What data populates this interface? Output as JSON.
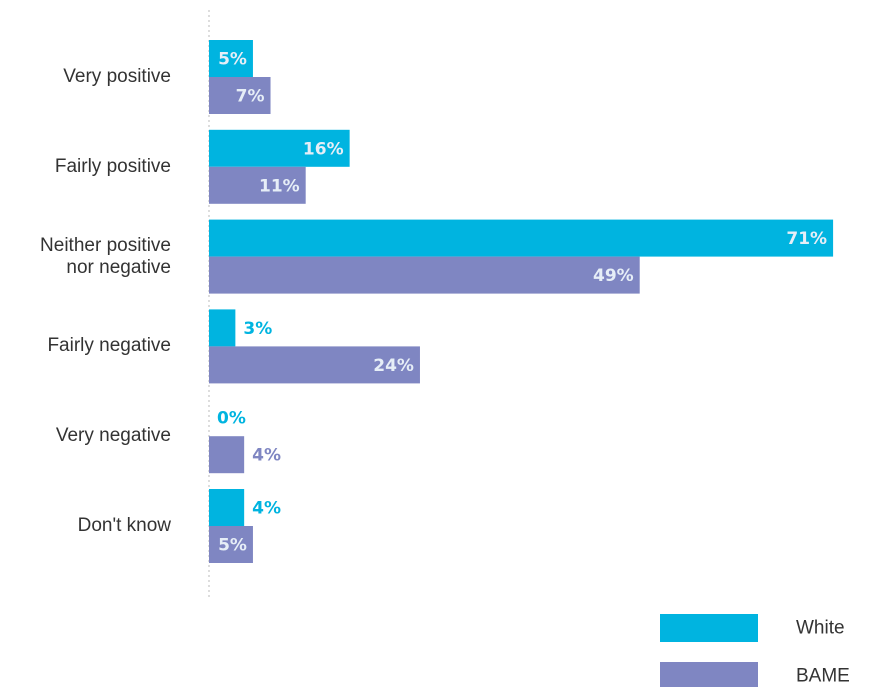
{
  "chart_data": {
    "type": "bar",
    "orientation": "horizontal",
    "categories": [
      "Very positive",
      "Fairly positive",
      "Neither positive\nnor negative",
      "Fairly negative",
      "Very negative",
      "Don't know"
    ],
    "series": [
      {
        "name": "White",
        "color": "#00b4e0",
        "values": [
          5,
          16,
          71,
          3,
          0,
          4
        ],
        "value_labels": [
          "5%",
          "16%",
          "71%",
          "3%",
          "0%",
          "4%"
        ]
      },
      {
        "name": "BAME",
        "color": "#7f86c2",
        "values": [
          7,
          11,
          49,
          24,
          4,
          5
        ],
        "value_labels": [
          "7%",
          "11%",
          "49%",
          "24%",
          "4%",
          "5%"
        ]
      }
    ],
    "legend": "bottom-right"
  }
}
